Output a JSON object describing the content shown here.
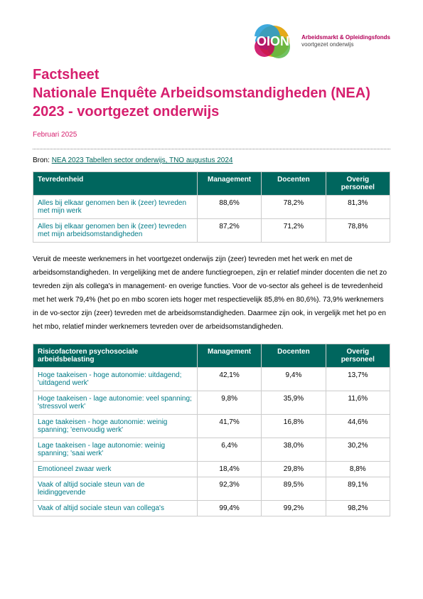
{
  "colors": {
    "title": "#d61f6e",
    "table_header_bg": "#00665e",
    "table_header_fg": "#ffffff",
    "row_label": "#007a87",
    "link": "#00665e",
    "logo_blue": "#1f9bd7",
    "logo_green": "#58b947",
    "logo_gold": "#e2a100",
    "logo_pink": "#c9005b"
  },
  "logo": {
    "text": "VOION",
    "line1": "Arbeidsmarkt & Opleidingsfonds",
    "line2": "voortgezet onderwijs"
  },
  "title": "Factsheet\nNationale Enquête Arbeidsomstandigheden (NEA) 2023 - voortgezet onderwijs",
  "date": "Februari 2025",
  "source_label": "Bron:",
  "source_link_text": "NEA 2023 Tabellen sector onderwijs, TNO augustus 2024",
  "table1": {
    "headers": [
      "Tevredenheid",
      "Management",
      "Docenten",
      "Overig personeel"
    ],
    "rows": [
      {
        "label": "Alles bij elkaar genomen ben ik (zeer) tevreden met mijn werk",
        "cells": [
          "88,6%",
          "78,2%",
          "81,3%"
        ]
      },
      {
        "label": "Alles bij elkaar genomen ben ik (zeer) tevreden met mijn arbeidsomstandigheden",
        "cells": [
          "87,2%",
          "71,2%",
          "78,8%"
        ]
      }
    ]
  },
  "paragraph1": "Veruit de meeste werknemers in het voortgezet onderwijs zijn (zeer) tevreden met het werk en met de arbeidsomstandigheden. In vergelijking met de andere functiegroepen, zijn er relatief minder docenten die net zo tevreden zijn als collega's in management- en overige functies. Voor de vo-sector als geheel is de tevredenheid met het werk 79,4% (het po en mbo scoren iets hoger met respectievelijk 85,8% en 80,6%). 73,9% werknemers in de vo-sector zijn (zeer) tevreden met de arbeidsomstandigheden. Daarmee zijn ook, in vergelijk met het po en het mbo, relatief minder werknemers tevreden over de arbeidsomstandigheden.",
  "table2": {
    "headers": [
      "Risicofactoren psychosociale arbeidsbelasting",
      "Management",
      "Docenten",
      "Overig personeel"
    ],
    "rows": [
      {
        "label": "Hoge taakeisen - hoge autonomie: uitdagend; 'uitdagend werk'",
        "cells": [
          "42,1%",
          "9,4%",
          "13,7%"
        ]
      },
      {
        "label": "Hoge taakeisen - lage autonomie: veel spanning; 'stressvol werk'",
        "cells": [
          "9,8%",
          "35,9%",
          "11,6%"
        ]
      },
      {
        "label": "Lage taakeisen - hoge autonomie: weinig spanning; 'eenvoudig werk'",
        "cells": [
          "41,7%",
          "16,8%",
          "44,6%"
        ]
      },
      {
        "label": "Lage taakeisen - lage autonomie: weinig spanning; 'saai werk'",
        "cells": [
          "6,4%",
          "38,0%",
          "30,2%"
        ]
      },
      {
        "label": "Emotioneel zwaar werk",
        "cells": [
          "18,4%",
          "29,8%",
          "8,8%"
        ]
      },
      {
        "label": "Vaak of altijd sociale steun van de leidinggevende",
        "cells": [
          "92,3%",
          "89,5%",
          "89,1%"
        ]
      },
      {
        "label": "Vaak of altijd sociale steun van collega's",
        "cells": [
          "99,4%",
          "99,2%",
          "98,2%"
        ]
      }
    ]
  }
}
